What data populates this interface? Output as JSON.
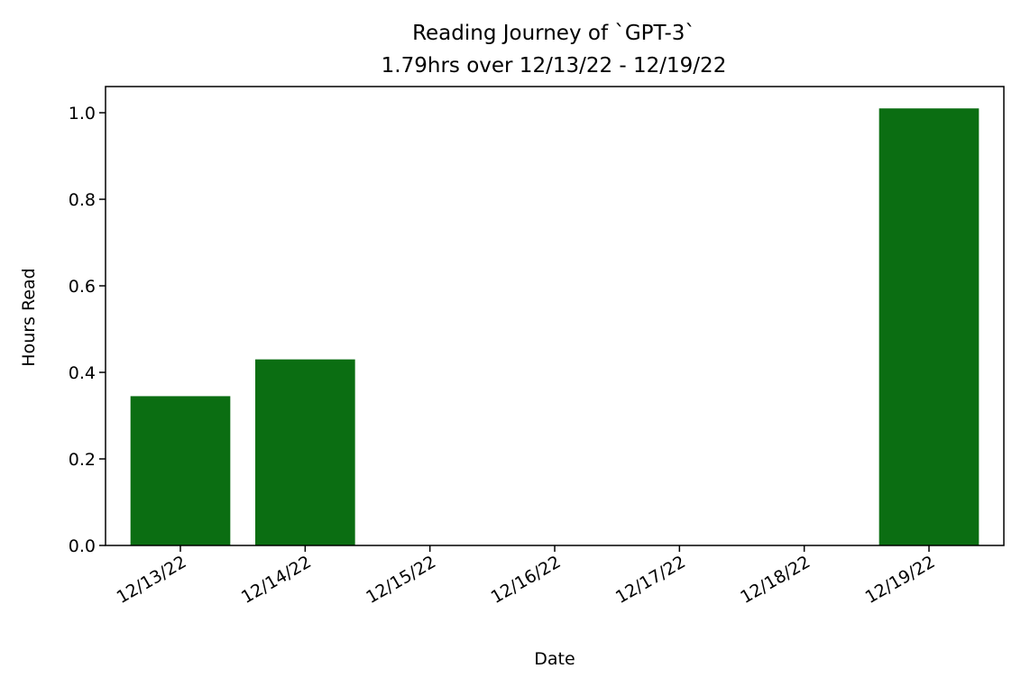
{
  "chart_data": {
    "type": "bar",
    "title": "Reading Journey of `GPT-3`",
    "subtitle": "1.79hrs over 12/13/22 - 12/19/22",
    "xlabel": "Date",
    "ylabel": "Hours Read",
    "categories": [
      "12/13/22",
      "12/14/22",
      "12/15/22",
      "12/16/22",
      "12/17/22",
      "12/18/22",
      "12/19/22"
    ],
    "values": [
      0.345,
      0.43,
      0,
      0,
      0,
      0,
      1.01
    ],
    "ylim": [
      0,
      1.0605
    ],
    "yticks": [
      "0.0",
      "0.2",
      "0.4",
      "0.6",
      "0.8",
      "1.0"
    ],
    "grid": false,
    "bar_color": "#0b6e12"
  }
}
